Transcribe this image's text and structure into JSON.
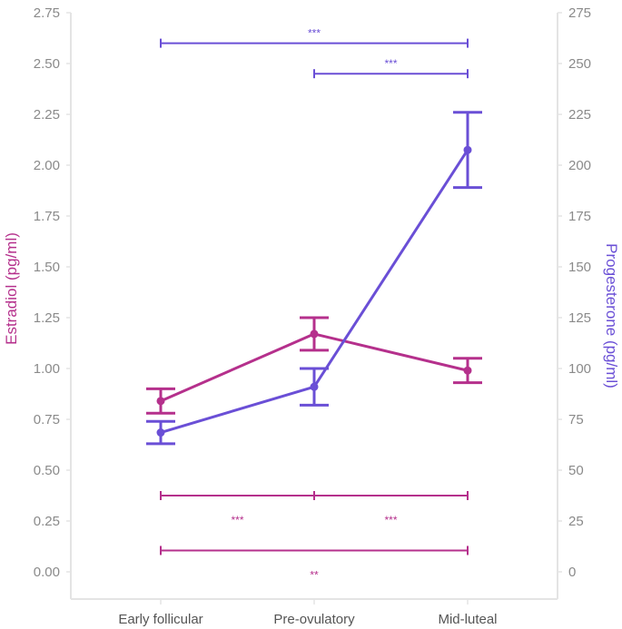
{
  "chart_data": {
    "type": "line",
    "categories": [
      "Early follicular",
      "Pre-ovulatory",
      "Mid-luteal"
    ],
    "ylabel_left": "Estradiol (pg/ml)",
    "ylabel_right": "Progesterone (pg/ml)",
    "ylim_left": [
      0,
      2.75
    ],
    "ylim_right": [
      0,
      275
    ],
    "yticks_left": [
      "0.00",
      "0.25",
      "0.50",
      "0.75",
      "1.00",
      "1.25",
      "1.50",
      "1.75",
      "2.00",
      "2.25",
      "2.50",
      "2.75"
    ],
    "yticks_right": [
      "0",
      "25",
      "50",
      "75",
      "100",
      "125",
      "150",
      "175",
      "200",
      "225",
      "250",
      "275"
    ],
    "grid": false,
    "series": [
      {
        "name": "Estradiol (pg/ml)",
        "axis": "left",
        "color": "#b5308c",
        "values": [
          0.84,
          1.17,
          0.99
        ],
        "err_low": [
          0.78,
          1.09,
          0.93
        ],
        "err_high": [
          0.9,
          1.25,
          1.05
        ]
      },
      {
        "name": "Progesterone (pg/ml)",
        "axis": "right",
        "color": "#6a4fd6",
        "values": [
          68.5,
          91,
          207.5
        ],
        "err_low": [
          63,
          82,
          189
        ],
        "err_high": [
          74,
          100,
          226
        ]
      }
    ],
    "significance": [
      {
        "series": "Progesterone (pg/ml)",
        "from": 0,
        "to": 2,
        "label": "***",
        "level": 260,
        "label_pos": "above"
      },
      {
        "series": "Progesterone (pg/ml)",
        "from": 1,
        "to": 2,
        "label": "***",
        "level": 245,
        "label_pos": "above"
      },
      {
        "series": "Estradiol (pg/ml)",
        "from": 0,
        "to": 1,
        "label": "***",
        "level": 0.375,
        "label_pos": "below"
      },
      {
        "series": "Estradiol (pg/ml)",
        "from": 1,
        "to": 2,
        "label": "***",
        "level": 0.375,
        "label_pos": "below"
      },
      {
        "series": "Estradiol (pg/ml)",
        "from": 0,
        "to": 2,
        "label": "**",
        "level": 0.105,
        "label_pos": "below"
      }
    ]
  }
}
